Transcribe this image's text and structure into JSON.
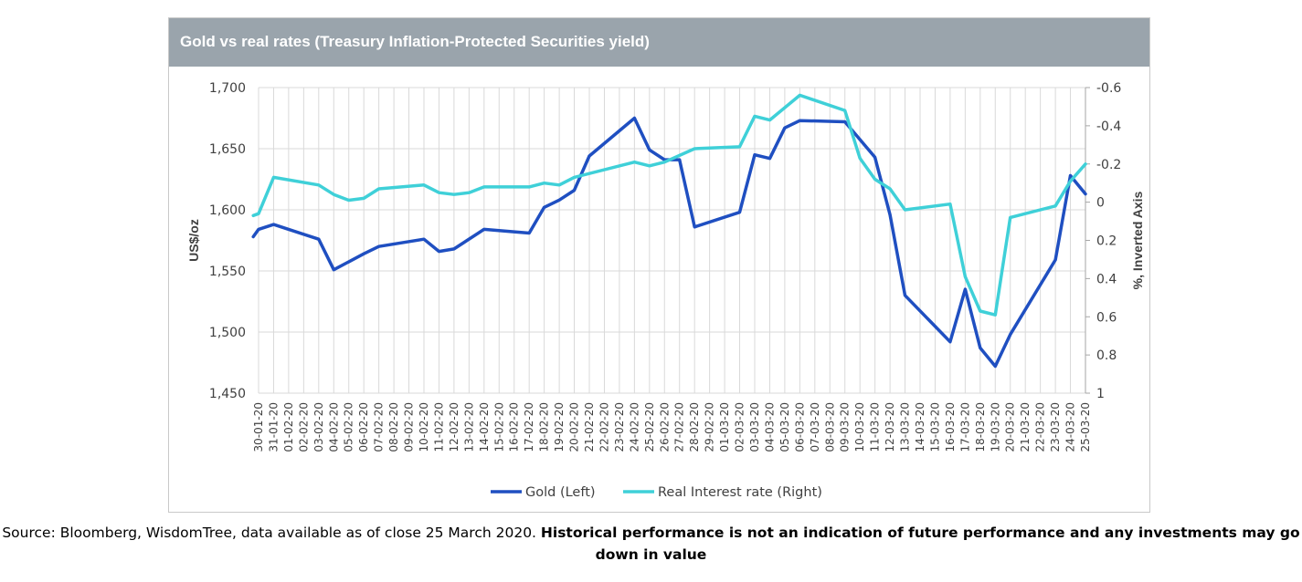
{
  "colors": {
    "title_bar": "#9aa4ac",
    "gold": "#1f4fc1",
    "real_rate": "#3fd0d8",
    "grid": "#d9d9d9",
    "axis_text": "#404040"
  },
  "footer": {
    "source_text": "Source: Bloomberg, WisdomTree, data available as of close 25 March 2020.",
    "disclaimer_text": "Historical performance is not an indication of future performance and any investments may go down in value"
  },
  "chart_data": {
    "type": "line",
    "title": "Gold vs real rates (Treasury Inflation-Protected Securities yield)",
    "ylabel_left": "US$/oz",
    "ylabel_right": "%, Inverted Axis",
    "left_ylim": [
      1450,
      1700
    ],
    "left_ticks": [
      "1,700",
      "1,650",
      "1,600",
      "1,550",
      "1,500",
      "1,450"
    ],
    "right_ylim": [
      -0.6,
      1
    ],
    "right_inverted": true,
    "right_ticks": [
      "-0.6",
      "-0.4",
      "-0.2",
      "0",
      "0.2",
      "0.4",
      "0.6",
      "0.8",
      "1"
    ],
    "grid": true,
    "legend_position": "bottom",
    "categories": [
      "30-01-20",
      "31-01-20",
      "01-02-20",
      "02-02-20",
      "03-02-20",
      "04-02-20",
      "05-02-20",
      "06-02-20",
      "07-02-20",
      "08-02-20",
      "09-02-20",
      "10-02-20",
      "11-02-20",
      "12-02-20",
      "13-02-20",
      "14-02-20",
      "15-02-20",
      "16-02-20",
      "17-02-20",
      "18-02-20",
      "19-02-20",
      "20-02-20",
      "21-02-20",
      "22-02-20",
      "23-02-20",
      "24-02-20",
      "25-02-20",
      "26-02-20",
      "27-02-20",
      "28-02-20",
      "29-02-20",
      "01-03-20",
      "02-03-20",
      "03-03-20",
      "04-03-20",
      "05-03-20",
      "06-03-20",
      "07-03-20",
      "08-03-20",
      "09-03-20",
      "10-03-20",
      "11-03-20",
      "12-03-20",
      "13-03-20",
      "14-03-20",
      "15-03-20",
      "16-03-20",
      "17-03-20",
      "18-03-20",
      "19-03-20",
      "20-03-20",
      "21-03-20",
      "22-03-20",
      "23-03-20",
      "24-03-20",
      "25-03-20"
    ],
    "series": [
      {
        "name": "Gold (Left)",
        "axis": "left",
        "points": [
          [
            "30-01-20",
            1578
          ],
          [
            "30-01-20",
            1584
          ],
          [
            "31-01-20",
            1588
          ],
          [
            "03-02-20",
            1576
          ],
          [
            "04-02-20",
            1551
          ],
          [
            "06-02-20",
            1564
          ],
          [
            "07-02-20",
            1570
          ],
          [
            "10-02-20",
            1576
          ],
          [
            "11-02-20",
            1566
          ],
          [
            "12-02-20",
            1568
          ],
          [
            "14-02-20",
            1584
          ],
          [
            "17-02-20",
            1581
          ],
          [
            "18-02-20",
            1602
          ],
          [
            "19-02-20",
            1608
          ],
          [
            "20-02-20",
            1616
          ],
          [
            "21-02-20",
            1644
          ],
          [
            "24-02-20",
            1675
          ],
          [
            "25-02-20",
            1649
          ],
          [
            "26-02-20",
            1641
          ],
          [
            "27-02-20",
            1641
          ],
          [
            "28-02-20",
            1586
          ],
          [
            "02-03-20",
            1598
          ],
          [
            "03-03-20",
            1645
          ],
          [
            "04-03-20",
            1642
          ],
          [
            "05-03-20",
            1667
          ],
          [
            "06-03-20",
            1673
          ],
          [
            "09-03-20",
            1672
          ],
          [
            "11-03-20",
            1643
          ],
          [
            "12-03-20",
            1596
          ],
          [
            "13-03-20",
            1530
          ],
          [
            "16-03-20",
            1492
          ],
          [
            "17-03-20",
            1535
          ],
          [
            "18-03-20",
            1487
          ],
          [
            "19-03-20",
            1472
          ],
          [
            "20-03-20",
            1498
          ],
          [
            "23-03-20",
            1559
          ],
          [
            "24-03-20",
            1628
          ],
          [
            "25-03-20",
            1613
          ]
        ]
      },
      {
        "name": "Real Interest rate (Right)",
        "axis": "right",
        "points": [
          [
            "30-01-20",
            0.07
          ],
          [
            "30-01-20",
            0.06
          ],
          [
            "31-01-20",
            -0.13
          ],
          [
            "03-02-20",
            -0.09
          ],
          [
            "04-02-20",
            -0.04
          ],
          [
            "05-02-20",
            -0.01
          ],
          [
            "06-02-20",
            -0.02
          ],
          [
            "07-02-20",
            -0.07
          ],
          [
            "10-02-20",
            -0.09
          ],
          [
            "11-02-20",
            -0.05
          ],
          [
            "12-02-20",
            -0.04
          ],
          [
            "13-02-20",
            -0.05
          ],
          [
            "14-02-20",
            -0.08
          ],
          [
            "17-02-20",
            -0.08
          ],
          [
            "18-02-20",
            -0.1
          ],
          [
            "19-02-20",
            -0.09
          ],
          [
            "20-02-20",
            -0.13
          ],
          [
            "24-02-20",
            -0.21
          ],
          [
            "25-02-20",
            -0.19
          ],
          [
            "26-02-20",
            -0.21
          ],
          [
            "28-02-20",
            -0.28
          ],
          [
            "02-03-20",
            -0.29
          ],
          [
            "03-03-20",
            -0.45
          ],
          [
            "04-03-20",
            -0.43
          ],
          [
            "06-03-20",
            -0.56
          ],
          [
            "09-03-20",
            -0.48
          ],
          [
            "10-03-20",
            -0.23
          ],
          [
            "11-03-20",
            -0.12
          ],
          [
            "12-03-20",
            -0.07
          ],
          [
            "13-03-20",
            0.04
          ],
          [
            "16-03-20",
            0.01
          ],
          [
            "17-03-20",
            0.39
          ],
          [
            "18-03-20",
            0.57
          ],
          [
            "19-03-20",
            0.59
          ],
          [
            "20-03-20",
            0.08
          ],
          [
            "23-03-20",
            0.02
          ],
          [
            "24-03-20",
            -0.11
          ],
          [
            "25-03-20",
            -0.2
          ]
        ]
      }
    ]
  }
}
